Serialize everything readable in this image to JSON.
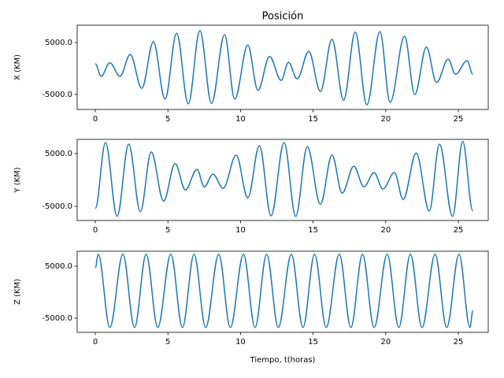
{
  "chart_data": [
    {
      "type": "line",
      "title": "Posición",
      "ylabel": "X (KM)",
      "x": [
        0,
        0.4,
        1.0,
        1.7,
        2.4,
        3.2,
        4.0,
        4.8,
        5.6,
        6.4,
        7.2,
        8.0,
        8.9,
        9.6,
        10.5,
        11.2,
        12.0,
        12.8,
        13.3,
        13.9,
        14.7,
        15.5,
        16.3,
        17.1,
        17.9,
        18.7,
        19.6,
        20.3,
        21.3,
        22.0,
        22.8,
        23.5,
        24.3,
        24.8,
        25.6,
        26.0
      ],
      "values": [
        900,
        -1500,
        1100,
        -1500,
        2700,
        -3800,
        5150,
        -5900,
        6800,
        -6800,
        7300,
        -6700,
        6500,
        -5900,
        4500,
        -4200,
        2300,
        -2300,
        1200,
        -2000,
        3300,
        -4400,
        5600,
        -6100,
        7000,
        -7000,
        7100,
        -6500,
        6200,
        -5000,
        4100,
        -2700,
        1800,
        -1100,
        1500,
        -1100
      ],
      "color": "#1f77b4",
      "xlim": [
        -1.25,
        27.06
      ],
      "ylim": [
        -7880,
        8330
      ],
      "xticks": [
        0,
        5,
        10,
        15,
        20,
        25
      ],
      "yticks": [
        {
          "value": -5000,
          "label": "-5000.0"
        },
        {
          "value": 5000,
          "label": "5000.0"
        }
      ]
    },
    {
      "type": "line",
      "ylabel": "Y (KM)",
      "x": [
        0,
        0.7,
        1.5,
        2.3,
        3.1,
        3.85,
        4.7,
        5.5,
        6.2,
        7.0,
        7.5,
        8.1,
        8.8,
        9.7,
        10.5,
        11.3,
        12.1,
        13.0,
        13.8,
        14.6,
        15.5,
        16.3,
        17.0,
        17.8,
        18.5,
        19.2,
        19.8,
        20.6,
        21.2,
        22.1,
        23.0,
        23.7,
        24.6,
        25.3,
        26.0
      ],
      "values": [
        -5400,
        7100,
        -6900,
        6800,
        -6000,
        5300,
        -4000,
        3100,
        -1900,
        2000,
        -1300,
        1100,
        -1600,
        4700,
        -3400,
        6500,
        -6800,
        7100,
        -6900,
        6300,
        -4600,
        4700,
        -2500,
        2600,
        -1300,
        1400,
        -1700,
        1400,
        -3700,
        5100,
        -5900,
        6800,
        -6900,
        7300,
        -5900
      ],
      "color": "#1f77b4",
      "xlim": [
        -1.25,
        27.06
      ],
      "ylim": [
        -7690,
        7690
      ],
      "xticks": [
        0,
        5,
        10,
        15,
        20,
        25
      ],
      "yticks": [
        {
          "value": -5000,
          "label": "-5000.0"
        },
        {
          "value": 5000,
          "label": "5000.0"
        }
      ]
    },
    {
      "type": "line",
      "ylabel": "Z (KM)",
      "xlabel": "Tiempo, t(horas)",
      "x": [
        0,
        0.2,
        1.0,
        1.9,
        2.7,
        3.5,
        4.3,
        5.2,
        6.0,
        6.8,
        7.6,
        8.5,
        9.3,
        10.2,
        11.0,
        11.8,
        12.6,
        13.5,
        14.3,
        15.1,
        15.9,
        16.8,
        17.6,
        18.4,
        19.2,
        20.1,
        20.9,
        21.7,
        22.5,
        23.4,
        24.2,
        25.05,
        25.8,
        26.0
      ],
      "values": [
        4700,
        7300,
        -6800,
        7300,
        -6800,
        7300,
        -6800,
        7300,
        -6800,
        7300,
        -6800,
        7300,
        -6800,
        7300,
        -6800,
        7300,
        -6800,
        7300,
        -6800,
        7300,
        -6800,
        7300,
        -6800,
        7300,
        -6800,
        7300,
        -6800,
        7300,
        -6800,
        7300,
        -6800,
        7300,
        -6800,
        -3500
      ],
      "color": "#1f77b4",
      "xlim": [
        -1.25,
        27.06
      ],
      "ylim": [
        -7730,
        7880
      ],
      "xticks": [
        0,
        5,
        10,
        15,
        20,
        25
      ],
      "yticks": [
        {
          "value": -5000,
          "label": "-5000.0"
        },
        {
          "value": 5000,
          "label": "5000.0"
        }
      ]
    }
  ]
}
